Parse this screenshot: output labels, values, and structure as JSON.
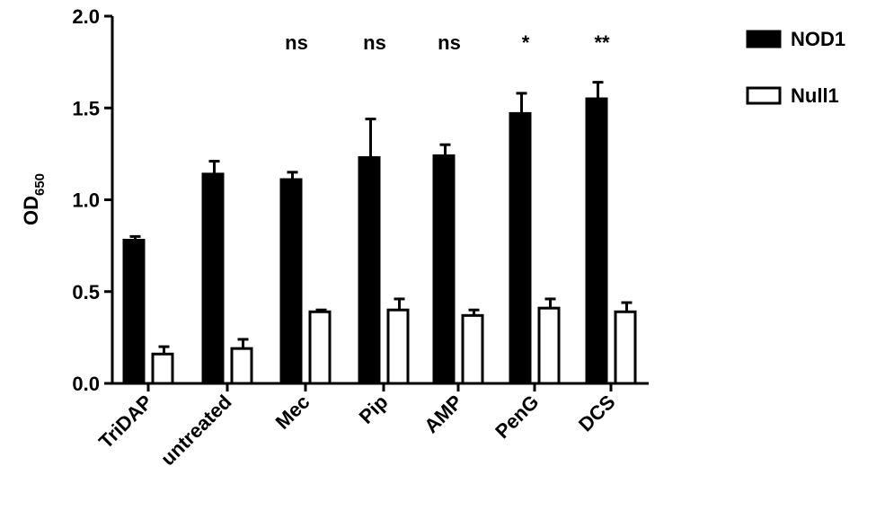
{
  "chart_data": {
    "type": "bar",
    "ylabel": "OD",
    "ylabel_subscript": "650",
    "categories": [
      "TriDAP",
      "untreated",
      "Mec",
      "Pip",
      "AMP",
      "PenG",
      "DCS"
    ],
    "series": [
      {
        "name": "NOD1",
        "color": "#000000",
        "values": [
          0.78,
          1.14,
          1.11,
          1.23,
          1.24,
          1.47,
          1.55
        ],
        "errors": [
          0.02,
          0.07,
          0.04,
          0.21,
          0.06,
          0.11,
          0.09
        ]
      },
      {
        "name": "Null1",
        "color": "#ffffff",
        "values": [
          0.16,
          0.19,
          0.39,
          0.4,
          0.37,
          0.41,
          0.39
        ],
        "errors": [
          0.04,
          0.05,
          0.01,
          0.06,
          0.03,
          0.05,
          0.05
        ]
      }
    ],
    "annotations": [
      null,
      null,
      "ns",
      "ns",
      "ns",
      "*",
      "**"
    ],
    "ylim": [
      0,
      2
    ],
    "yticks": [
      {
        "value": 0,
        "label": "0.0"
      },
      {
        "value": 0.5,
        "label": "0.5"
      },
      {
        "value": 1,
        "label": "1.0"
      },
      {
        "value": 1.5,
        "label": "1.5"
      },
      {
        "value": 2,
        "label": "2.0"
      }
    ],
    "legend": "top-right"
  }
}
